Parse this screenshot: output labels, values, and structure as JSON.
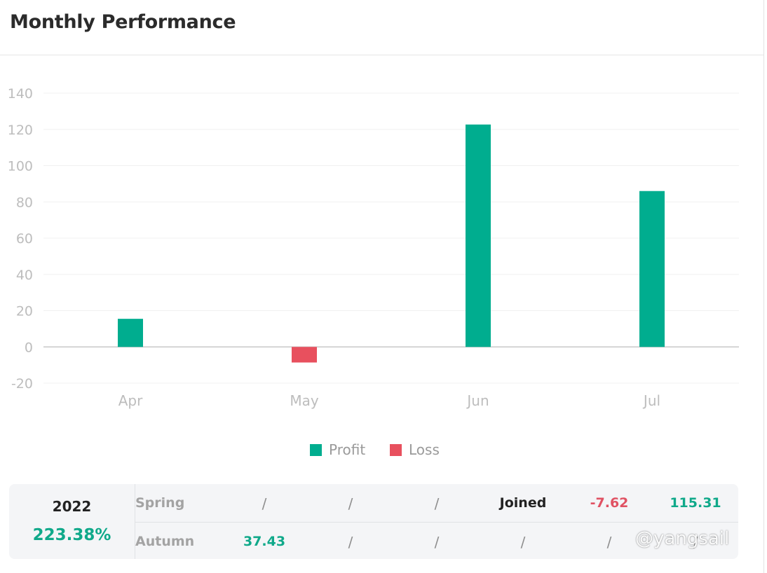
{
  "title": "Monthly Performance",
  "chart_data": {
    "type": "bar",
    "categories": [
      "Apr",
      "May",
      "Jun",
      "Jul"
    ],
    "values": [
      15.5,
      -8.6,
      122.7,
      86.0
    ],
    "yticks": [
      140,
      120,
      100,
      80,
      60,
      40,
      20,
      0,
      -20
    ],
    "ylim": [
      -20,
      140
    ],
    "grid": true,
    "legend_position": "bottom-center",
    "legend": [
      {
        "name": "Profit",
        "color": "#00ad8f"
      },
      {
        "name": "Loss",
        "color": "#e8505e"
      }
    ]
  },
  "colors": {
    "profit": "#00ad8f",
    "loss": "#e8505e"
  },
  "summary": {
    "year": "2022",
    "total": "223.38%",
    "rows": [
      {
        "season": "Spring",
        "cells": [
          "/",
          "/",
          "/",
          "Joined",
          "-7.62",
          "115.31"
        ]
      },
      {
        "season": "Autumn",
        "cells": [
          "37.43",
          "/",
          "/",
          "/",
          "/",
          "/"
        ]
      }
    ]
  },
  "watermark": "@yangsail"
}
